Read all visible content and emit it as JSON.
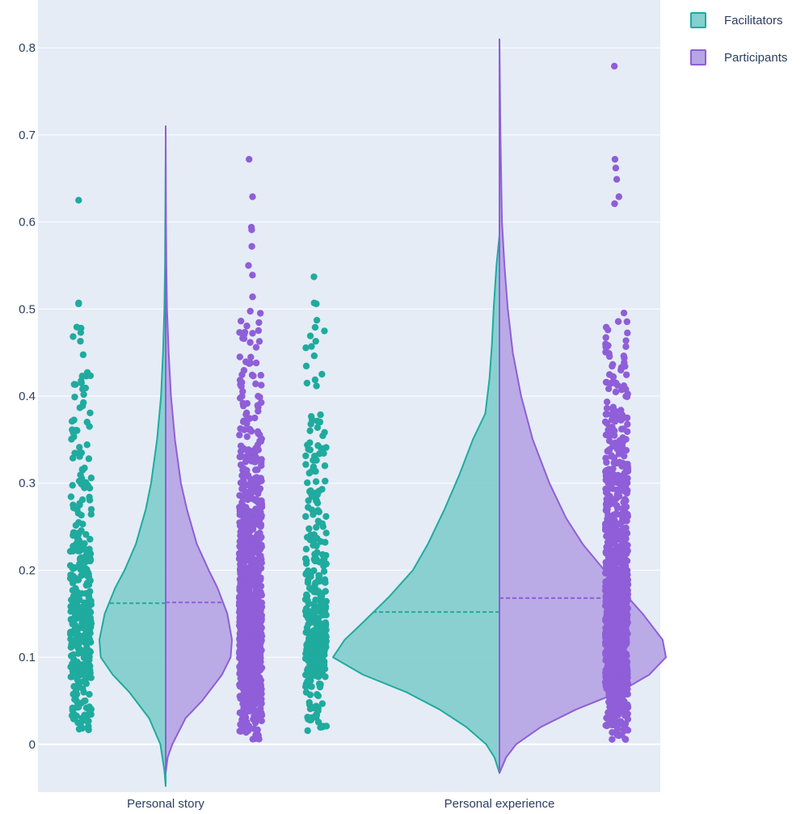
{
  "chart_data": {
    "type": "violin",
    "title": "",
    "xlabel": "",
    "ylabel": "",
    "ylim": [
      -0.055,
      0.855
    ],
    "y_ticks": [
      "0",
      "0.1",
      "0.2",
      "0.3",
      "0.4",
      "0.5",
      "0.6",
      "0.7",
      "0.8"
    ],
    "y_tick_values": [
      0,
      0.1,
      0.2,
      0.3,
      0.4,
      0.5,
      0.6,
      0.7,
      0.8
    ],
    "categories": [
      "Personal story",
      "Personal experience"
    ],
    "grid": true,
    "legend_position": "top-right",
    "colors": {
      "plot_background": "#e5ecf6",
      "grid": "#ffffff",
      "facilitators_line": "#1fab9e",
      "facilitators_fill": "#86cfcf",
      "participants_line": "#8f5ed8",
      "participants_fill": "#b7a6e5"
    },
    "series": [
      {
        "name": "Facilitators",
        "side": "negative",
        "color": "#1fab9e",
        "per_category": [
          {
            "category": "Personal story",
            "median": 0.162,
            "min": -0.048,
            "max": 0.69,
            "points_range": [
              0.015,
              0.625
            ],
            "outliers": [
              0.625,
              0.507,
              0.506,
              0.478,
              0.463,
              0.423,
              0.415,
              0.408
            ],
            "density_profile": [
              [
                -0.048,
                0.0
              ],
              [
                -0.03,
                0.02
              ],
              [
                0.0,
                0.08
              ],
              [
                0.03,
                0.25
              ],
              [
                0.06,
                0.55
              ],
              [
                0.08,
                0.8
              ],
              [
                0.1,
                0.98
              ],
              [
                0.12,
                1.0
              ],
              [
                0.15,
                0.92
              ],
              [
                0.18,
                0.76
              ],
              [
                0.2,
                0.62
              ],
              [
                0.23,
                0.45
              ],
              [
                0.27,
                0.3
              ],
              [
                0.3,
                0.22
              ],
              [
                0.35,
                0.13
              ],
              [
                0.4,
                0.07
              ],
              [
                0.45,
                0.04
              ],
              [
                0.5,
                0.02
              ],
              [
                0.55,
                0.01
              ],
              [
                0.69,
                0.0
              ]
            ]
          },
          {
            "category": "Personal experience",
            "median": 0.152,
            "min": -0.033,
            "max": 0.585,
            "points_range": [
              0.015,
              0.537
            ],
            "outliers": [
              0.537,
              0.507,
              0.506,
              0.479,
              0.463
            ],
            "density_profile": [
              [
                -0.033,
                0.0
              ],
              [
                -0.015,
                0.03
              ],
              [
                0.0,
                0.08
              ],
              [
                0.02,
                0.2
              ],
              [
                0.04,
                0.36
              ],
              [
                0.06,
                0.56
              ],
              [
                0.08,
                0.82
              ],
              [
                0.1,
                1.0
              ],
              [
                0.12,
                0.93
              ],
              [
                0.14,
                0.82
              ],
              [
                0.17,
                0.66
              ],
              [
                0.2,
                0.52
              ],
              [
                0.23,
                0.43
              ],
              [
                0.27,
                0.33
              ],
              [
                0.31,
                0.24
              ],
              [
                0.35,
                0.16
              ],
              [
                0.38,
                0.085
              ],
              [
                0.42,
                0.06
              ],
              [
                0.46,
                0.045
              ],
              [
                0.5,
                0.035
              ],
              [
                0.55,
                0.018
              ],
              [
                0.585,
                0.0
              ]
            ]
          }
        ]
      },
      {
        "name": "Participants",
        "side": "positive",
        "color": "#8f5ed8",
        "per_category": [
          {
            "category": "Personal story",
            "median": 0.163,
            "min": -0.033,
            "max": 0.71,
            "points_range": [
              0.005,
              0.672
            ],
            "outliers": [
              0.672,
              0.629,
              0.594,
              0.591,
              0.572,
              0.55,
              0.539,
              0.514
            ],
            "density_profile": [
              [
                -0.033,
                0.0
              ],
              [
                -0.015,
                0.03
              ],
              [
                0.0,
                0.1
              ],
              [
                0.03,
                0.3
              ],
              [
                0.05,
                0.55
              ],
              [
                0.08,
                0.85
              ],
              [
                0.1,
                0.98
              ],
              [
                0.12,
                1.0
              ],
              [
                0.15,
                0.93
              ],
              [
                0.18,
                0.78
              ],
              [
                0.2,
                0.65
              ],
              [
                0.23,
                0.47
              ],
              [
                0.27,
                0.32
              ],
              [
                0.3,
                0.23
              ],
              [
                0.35,
                0.14
              ],
              [
                0.4,
                0.08
              ],
              [
                0.45,
                0.045
              ],
              [
                0.5,
                0.02
              ],
              [
                0.55,
                0.01
              ],
              [
                0.6,
                0.005
              ],
              [
                0.71,
                0.0
              ]
            ]
          },
          {
            "category": "Personal experience",
            "median": 0.168,
            "min": -0.033,
            "max": 0.81,
            "points_range": [
              0.005,
              0.779
            ],
            "outliers": [
              0.779,
              0.672,
              0.662,
              0.649,
              0.629,
              0.621
            ],
            "density_profile": [
              [
                -0.033,
                0.0
              ],
              [
                -0.015,
                0.04
              ],
              [
                0.0,
                0.1
              ],
              [
                0.02,
                0.25
              ],
              [
                0.04,
                0.46
              ],
              [
                0.06,
                0.72
              ],
              [
                0.08,
                0.9
              ],
              [
                0.1,
                1.0
              ],
              [
                0.12,
                0.98
              ],
              [
                0.15,
                0.86
              ],
              [
                0.18,
                0.72
              ],
              [
                0.2,
                0.63
              ],
              [
                0.23,
                0.5
              ],
              [
                0.26,
                0.4
              ],
              [
                0.3,
                0.3
              ],
              [
                0.35,
                0.2
              ],
              [
                0.4,
                0.13
              ],
              [
                0.45,
                0.08
              ],
              [
                0.5,
                0.05
              ],
              [
                0.55,
                0.03
              ],
              [
                0.6,
                0.015
              ],
              [
                0.7,
                0.006
              ],
              [
                0.81,
                0.0
              ]
            ]
          }
        ]
      }
    ]
  }
}
